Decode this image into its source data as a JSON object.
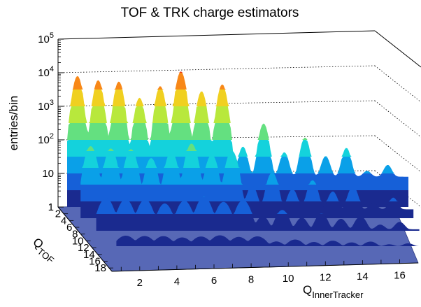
{
  "chart_data": {
    "type": "lego-surface-3d",
    "title": "TOF & TRK charge estimators",
    "zlabel": "entries/bin",
    "z_scale": "log",
    "z_ticks": [
      "1",
      "10",
      "10²",
      "10³",
      "10⁴",
      "10⁵"
    ],
    "z_tick_base": "10",
    "z_tick_exps": [
      "",
      "",
      "2",
      "3",
      "4",
      "5"
    ],
    "xlabel": "Q",
    "xlabel_sub": "InnerTracker",
    "x_ticks": [
      "2",
      "4",
      "6",
      "8",
      "10",
      "12",
      "14",
      "16"
    ],
    "ylabel": "Q",
    "ylabel_sub": "TOF",
    "y_ticks": [
      "2",
      "4",
      "6",
      "8",
      "10",
      "12",
      "14",
      "16",
      "18"
    ],
    "xlim": [
      0.5,
      17
    ],
    "ylim": [
      0,
      19
    ],
    "zlim": [
      1,
      100000
    ],
    "grid": true,
    "peaks_Q_inner_tracker": [
      1,
      2,
      3,
      4,
      5,
      6,
      7,
      8,
      9,
      10,
      11,
      12,
      13,
      14,
      15,
      16
    ],
    "peak_entries_per_bin": [
      8000,
      6000,
      5500,
      1800,
      4000,
      11000,
      2800,
      4500,
      55,
      300,
      35,
      110,
      25,
      50,
      4,
      10
    ],
    "colors": [
      "#1a2a8f",
      "#1660d8",
      "#0aa0e8",
      "#14d2dc",
      "#64e080",
      "#b8e83c",
      "#f0d020",
      "#f88818",
      "#e83010",
      "#901010"
    ]
  }
}
